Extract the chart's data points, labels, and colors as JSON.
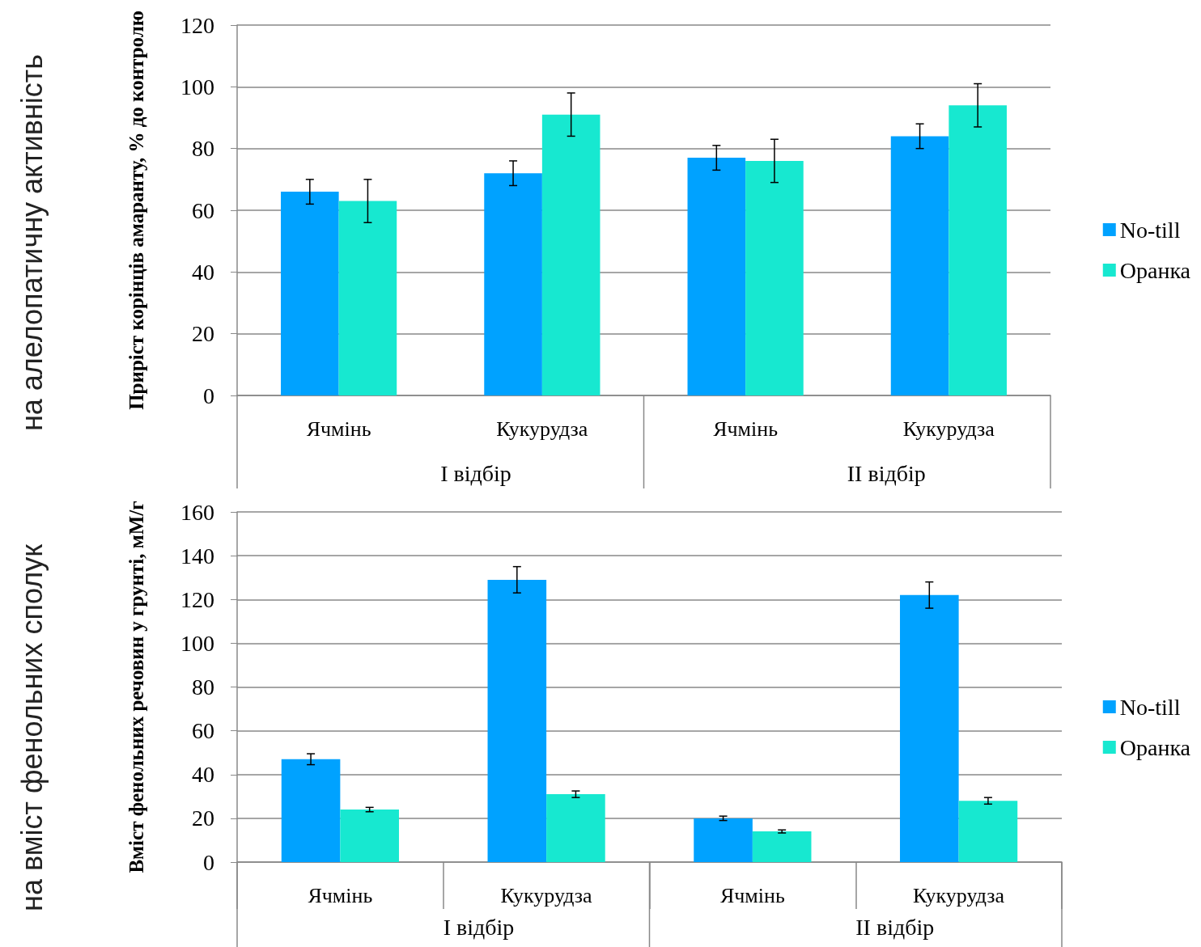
{
  "chart_data": [
    {
      "type": "bar",
      "ylabel": "Приріст корінців амаранту, % до контролю",
      "categories": [
        "Ячмінь",
        "Кукурудза",
        "Ячмінь",
        "Кукурудза"
      ],
      "series": [
        {
          "name": "No-till",
          "color": "#00a2ff",
          "values": [
            66,
            72,
            77,
            84
          ],
          "errors": [
            4,
            4,
            4,
            4
          ]
        },
        {
          "name": "Оранка",
          "color": "#17e8d0",
          "values": [
            63,
            91,
            76,
            94
          ],
          "errors": [
            7,
            7,
            7,
            7
          ]
        }
      ],
      "ylim": [
        0,
        120
      ],
      "yticks": [
        0,
        20,
        40,
        60,
        80,
        100,
        120
      ],
      "grid": "y",
      "legend": "right",
      "annotations": [
        "I відбір",
        "II відбір",
        "на алелопатичну активність"
      ]
    },
    {
      "type": "bar",
      "ylabel": "Вміст фенольних речовин у грунті, мМ/г",
      "categories": [
        "Ячмінь",
        "Кукурудза",
        "Ячмінь",
        "Кукурудза"
      ],
      "series": [
        {
          "name": "No-till",
          "color": "#00a2ff",
          "values": [
            47,
            129,
            20,
            122
          ],
          "errors": [
            2.5,
            6,
            1,
            6
          ]
        },
        {
          "name": "Оранка",
          "color": "#17e8d0",
          "values": [
            24,
            31,
            14,
            28
          ],
          "errors": [
            1,
            1.5,
            0.7,
            1.5
          ]
        }
      ],
      "ylim": [
        0,
        160
      ],
      "yticks": [
        0,
        20,
        40,
        60,
        80,
        100,
        120,
        140,
        160
      ],
      "grid": "y",
      "legend": "right",
      "annotations": [
        "I відбір",
        "II відбір",
        "на вміст фенольних сполук"
      ]
    }
  ]
}
